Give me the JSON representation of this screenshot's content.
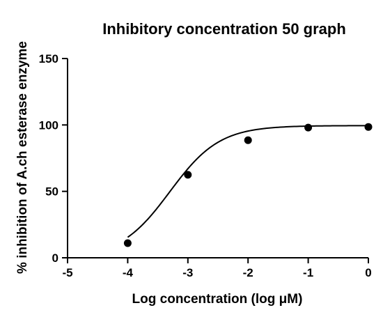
{
  "chart_data": {
    "type": "scatter",
    "title": "Inhibitory concentration 50 graph",
    "xlabel": "Log concentration (log μM)",
    "ylabel": "% inhibition of A.ch esterase enzyme",
    "xlim": [
      -5,
      0
    ],
    "ylim": [
      0,
      150
    ],
    "x_ticks": [
      -5,
      -4,
      -3,
      -2,
      -1,
      0
    ],
    "y_ticks": [
      0,
      50,
      100,
      150
    ],
    "grid": false,
    "legend": "none",
    "point_color": "#000000",
    "curve_color": "#000000",
    "series": [
      {
        "x": [
          -4,
          -3,
          -2,
          -1,
          0
        ],
        "y": [
          11,
          62.5,
          88.5,
          98,
          98.5
        ]
      }
    ],
    "fit_curve": {
      "model": "sigmoidal dose-response",
      "bottom": 0,
      "top": 99.5,
      "log_ic50": -3.3,
      "hill_slope": 1.05,
      "x_range": [
        -4,
        0
      ]
    }
  }
}
